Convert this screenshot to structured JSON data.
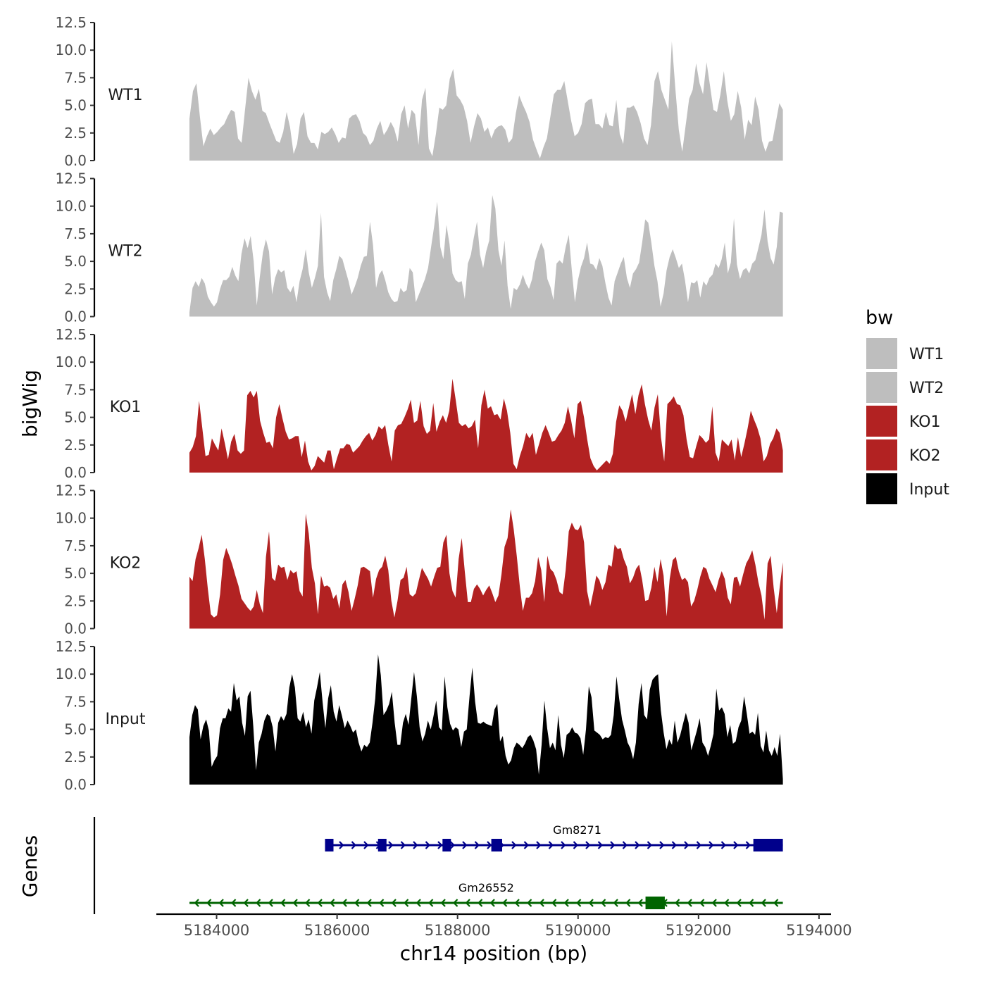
{
  "chart_data": {
    "type": "area",
    "description_axis": {
      "ylabel": "bigWig",
      "gene_panel_label": "Genes",
      "xlabel": "chr14 position (bp)",
      "x_ticks": [
        5184000,
        5186000,
        5188000,
        5190000,
        5192000,
        5194000
      ],
      "x_tick_labels": [
        "5184000",
        "5186000",
        "5188000",
        "5190000",
        "5192000",
        "5194000"
      ],
      "xlim": [
        5183000,
        5194200
      ],
      "data_x_range": [
        5183550,
        5193400
      ],
      "ylim": [
        0,
        12.5
      ],
      "y_ticks": [
        0,
        2.5,
        5,
        7.5,
        10,
        12.5
      ],
      "y_tick_labels": [
        "0.0",
        "2.5",
        "5.0",
        "7.5",
        "10.0",
        "12.5"
      ]
    },
    "series": [
      {
        "name": "WT1",
        "color": "#bebebe",
        "values": [
          3.8,
          6.3,
          7.0,
          4.0,
          1.3,
          2.2,
          2.9,
          2.3,
          2.6,
          3.0,
          3.3,
          4.0,
          4.6,
          4.4,
          2.0,
          1.6,
          4.6,
          7.5,
          6.3,
          5.5,
          6.5,
          4.5,
          4.3,
          3.4,
          2.6,
          1.8,
          1.6,
          2.6,
          4.4,
          3.0,
          0.6,
          1.5,
          3.8,
          4.4,
          2.2,
          1.6,
          1.6,
          1.0,
          2.6,
          2.4,
          2.6,
          3.0,
          2.4,
          1.6,
          2.1,
          2.0,
          3.8,
          4.1,
          4.2,
          3.6,
          2.5,
          2.2,
          1.4,
          1.8,
          2.9,
          3.6,
          2.3,
          2.8,
          3.5,
          2.9,
          1.7,
          4.2,
          5.0,
          2.9,
          4.6,
          4.2,
          1.4,
          5.5,
          6.6,
          1.1,
          0.4,
          2.4,
          4.8,
          4.6,
          5.0,
          7.4,
          8.3,
          5.9,
          5.5,
          4.9,
          3.6,
          1.6,
          3.1,
          4.3,
          3.8,
          2.6,
          3.0,
          2.0,
          2.8,
          3.1,
          3.2,
          2.8,
          1.6,
          2.0,
          4.2,
          5.9,
          5.1,
          4.4,
          3.5,
          1.9,
          1.0,
          0.2,
          1.2,
          2.0,
          4.0,
          6.0,
          6.4,
          6.4,
          7.2,
          5.4,
          3.6,
          2.2,
          2.5,
          3.3,
          5.2,
          5.5,
          5.6,
          3.3,
          3.3,
          2.9,
          4.4,
          3.2,
          3.1,
          5.5,
          2.4,
          1.5,
          4.8,
          4.8,
          5.0,
          4.4,
          3.4,
          2.0,
          1.4,
          3.2,
          7.2,
          8.1,
          6.4,
          5.5,
          4.6,
          10.8,
          6.6,
          2.8,
          0.8,
          3.2,
          5.6,
          6.4,
          8.8,
          7.0,
          6.0,
          8.9,
          6.8,
          4.6,
          4.4,
          6.0,
          8.1,
          5.4,
          3.6,
          4.2,
          6.3,
          4.8,
          1.9,
          3.7,
          3.2,
          5.8,
          4.6,
          1.8,
          0.8,
          1.7,
          1.8,
          3.5,
          5.2,
          4.6
        ]
      },
      {
        "name": "WT2",
        "color": "#bebebe",
        "values": [
          0.4,
          2.6,
          3.2,
          2.7,
          3.5,
          3.0,
          1.8,
          1.3,
          0.9,
          1.3,
          2.5,
          3.3,
          3.3,
          3.6,
          4.5,
          3.7,
          3.2,
          5.7,
          7.1,
          6.2,
          7.3,
          5.0,
          1.0,
          3.6,
          5.8,
          7.0,
          5.9,
          2.0,
          3.5,
          4.3,
          4.0,
          4.2,
          2.6,
          2.2,
          2.8,
          1.3,
          3.2,
          4.3,
          6.1,
          4.0,
          2.6,
          3.5,
          4.6,
          9.4,
          3.6,
          2.2,
          1.4,
          3.3,
          4.3,
          5.5,
          5.2,
          4.2,
          3.2,
          2.0,
          2.7,
          3.5,
          4.6,
          5.4,
          5.5,
          8.6,
          6.5,
          2.6,
          3.8,
          4.2,
          3.3,
          2.2,
          1.6,
          1.3,
          1.4,
          2.6,
          2.2,
          2.4,
          4.4,
          4.0,
          1.3,
          2.0,
          2.7,
          3.4,
          4.4,
          6.3,
          8.2,
          10.4,
          6.3,
          5.2,
          8.3,
          6.6,
          3.9,
          3.3,
          3.1,
          3.2,
          1.6,
          4.8,
          5.6,
          7.2,
          8.6,
          5.6,
          4.4,
          5.9,
          6.9,
          11.0,
          9.8,
          6.0,
          4.6,
          6.9,
          2.8,
          0.7,
          2.6,
          2.4,
          2.9,
          3.8,
          3.0,
          2.5,
          3.4,
          5.0,
          5.9,
          6.7,
          6.0,
          3.4,
          2.7,
          1.5,
          4.8,
          5.1,
          4.8,
          6.3,
          7.4,
          4.2,
          1.3,
          3.3,
          4.5,
          5.3,
          6.7,
          4.8,
          4.7,
          4.2,
          5.3,
          4.6,
          3.0,
          1.7,
          1.0,
          3.2,
          4.0,
          4.8,
          5.4,
          3.5,
          2.6,
          3.9,
          4.3,
          4.9,
          6.7,
          8.8,
          8.5,
          6.7,
          4.6,
          3.2,
          0.9,
          2.1,
          4.2,
          5.4,
          6.1,
          5.3,
          4.4,
          4.8,
          3.3,
          1.3,
          3.1,
          3.0,
          3.3,
          1.7,
          3.2,
          2.8,
          3.5,
          3.8,
          4.8,
          4.4,
          5.2,
          6.7,
          3.9,
          4.9,
          8.9,
          4.7,
          3.4,
          4.2,
          4.4,
          3.9,
          4.8,
          5.1,
          6.2,
          7.4,
          9.7,
          6.8,
          5.3,
          4.7,
          6.3,
          9.5,
          9.4
        ]
      },
      {
        "name": "KO1",
        "color": "#b22222",
        "values": [
          1.8,
          2.3,
          3.3,
          6.5,
          4.0,
          1.5,
          1.6,
          3.1,
          2.5,
          2.0,
          4.0,
          2.7,
          1.2,
          2.8,
          3.5,
          2.0,
          1.7,
          2.0,
          7.0,
          7.4,
          6.8,
          7.4,
          4.7,
          3.6,
          2.7,
          2.8,
          2.2,
          5.0,
          6.2,
          4.9,
          3.7,
          3.0,
          3.1,
          3.3,
          3.3,
          1.4,
          2.9,
          1.0,
          0.2,
          0.6,
          1.5,
          1.2,
          0.9,
          2.0,
          2.0,
          0.3,
          1.3,
          2.2,
          2.2,
          2.6,
          2.5,
          1.8,
          2.1,
          2.4,
          2.9,
          3.3,
          3.6,
          2.9,
          3.4,
          4.2,
          3.9,
          4.3,
          2.5,
          1.0,
          3.8,
          4.3,
          4.4,
          5.0,
          5.7,
          6.6,
          4.5,
          4.7,
          6.5,
          4.2,
          3.5,
          3.8,
          6.3,
          3.7,
          4.6,
          5.2,
          4.5,
          5.6,
          8.5,
          6.6,
          4.5,
          4.2,
          4.4,
          4.0,
          4.2,
          4.8,
          2.2,
          6.1,
          7.5,
          5.8,
          6.0,
          5.2,
          5.3,
          4.8,
          6.7,
          5.6,
          3.6,
          0.8,
          0.3,
          1.5,
          2.4,
          3.6,
          3.1,
          3.6,
          1.6,
          2.6,
          3.6,
          4.3,
          3.6,
          2.8,
          2.9,
          3.4,
          3.8,
          4.5,
          6.0,
          4.7,
          3.1,
          6.2,
          6.5,
          5.0,
          3.0,
          1.3,
          0.6,
          0.2,
          0.5,
          0.8,
          1.1,
          0.8,
          1.7,
          4.6,
          6.1,
          5.6,
          4.6,
          5.9,
          7.1,
          5.3,
          7.0,
          8.0,
          6.2,
          4.8,
          3.8,
          5.9,
          7.1,
          3.2,
          1.0,
          6.2,
          6.5,
          6.9,
          6.2,
          6.1,
          5.2,
          3.0,
          1.4,
          1.3,
          2.4,
          3.4,
          3.1,
          2.7,
          3.0,
          6.0,
          1.8,
          1.0,
          3.0,
          2.7,
          2.4,
          3.0,
          1.1,
          3.2,
          1.4,
          2.6,
          4.0,
          5.6,
          4.8,
          4.1,
          3.1,
          1.0,
          1.5,
          2.6,
          3.1,
          4.0,
          3.6,
          2.0
        ]
      },
      {
        "name": "KO2",
        "color": "#b22222",
        "values": [
          4.7,
          4.3,
          6.3,
          7.3,
          8.5,
          6.3,
          3.6,
          1.3,
          1.0,
          1.2,
          3.1,
          6.2,
          7.3,
          6.6,
          5.8,
          4.8,
          3.9,
          2.7,
          2.3,
          1.9,
          1.6,
          2.0,
          3.5,
          2.2,
          1.4,
          6.5,
          8.8,
          4.6,
          4.3,
          5.8,
          5.5,
          5.6,
          4.4,
          5.3,
          5.0,
          5.2,
          3.4,
          2.9,
          10.4,
          8.6,
          5.5,
          4.1,
          1.3,
          4.8,
          3.8,
          3.9,
          3.7,
          2.7,
          3.1,
          1.8,
          4.0,
          4.4,
          3.3,
          1.6,
          2.7,
          3.9,
          5.5,
          5.6,
          5.4,
          5.2,
          2.8,
          4.5,
          5.3,
          5.6,
          6.6,
          5.3,
          2.5,
          1.0,
          2.5,
          4.4,
          4.6,
          5.6,
          3.1,
          2.9,
          3.2,
          4.4,
          5.5,
          5.0,
          4.5,
          3.8,
          4.7,
          5.5,
          5.6,
          7.8,
          8.5,
          5.0,
          3.4,
          2.8,
          6.3,
          8.2,
          5.2,
          2.4,
          2.4,
          3.6,
          4.0,
          3.6,
          3.0,
          3.5,
          3.9,
          3.2,
          2.4,
          3.0,
          4.9,
          7.4,
          8.2,
          10.8,
          9.0,
          6.6,
          3.8,
          1.6,
          2.8,
          2.8,
          3.2,
          4.3,
          6.5,
          5.3,
          2.4,
          6.6,
          5.4,
          5.1,
          4.4,
          3.3,
          3.1,
          5.3,
          8.8,
          9.6,
          9.0,
          8.9,
          9.4,
          7.8,
          3.4,
          2.0,
          3.3,
          4.8,
          4.4,
          3.5,
          4.2,
          5.8,
          5.6,
          7.6,
          7.2,
          7.3,
          6.3,
          5.6,
          4.1,
          4.6,
          5.4,
          5.8,
          4.4,
          2.5,
          2.6,
          3.7,
          5.6,
          4.2,
          6.3,
          4.8,
          1.1,
          4.5,
          6.2,
          6.5,
          5.2,
          4.4,
          4.6,
          4.2,
          2.0,
          2.5,
          3.5,
          4.7,
          5.6,
          5.4,
          4.5,
          3.9,
          3.3,
          4.4,
          5.2,
          4.5,
          2.8,
          2.2,
          4.6,
          4.7,
          3.8,
          4.9,
          5.9,
          6.4,
          7.1,
          5.8,
          4.2,
          3.0,
          0.8,
          5.9,
          6.6,
          3.7,
          1.4,
          3.8,
          6.0
        ]
      },
      {
        "name": "Input",
        "color": "#000000",
        "values": [
          4.3,
          6.3,
          7.2,
          6.8,
          4.1,
          5.3,
          5.9,
          4.9,
          1.6,
          2.2,
          2.6,
          5.1,
          6.0,
          6.0,
          6.9,
          6.6,
          9.2,
          7.6,
          8.0,
          5.6,
          4.4,
          8.0,
          8.5,
          5.3,
          1.3,
          3.8,
          4.6,
          5.8,
          6.4,
          6.2,
          5.2,
          3.0,
          5.6,
          6.2,
          5.8,
          6.4,
          8.8,
          10.0,
          8.8,
          6.0,
          5.7,
          6.6,
          5.2,
          5.9,
          4.6,
          7.6,
          8.8,
          10.2,
          7.5,
          5.1,
          7.8,
          9.0,
          6.6,
          5.7,
          7.2,
          6.2,
          5.1,
          5.8,
          5.3,
          4.7,
          5.0,
          3.8,
          3.0,
          3.6,
          3.4,
          3.8,
          5.6,
          7.8,
          11.8,
          9.9,
          6.3,
          6.7,
          7.3,
          8.4,
          5.6,
          3.6,
          3.6,
          5.6,
          6.4,
          5.4,
          7.8,
          10.2,
          8.0,
          5.2,
          3.9,
          4.6,
          5.8,
          5.0,
          6.2,
          7.6,
          5.2,
          4.9,
          9.8,
          7.0,
          5.5,
          4.9,
          5.2,
          5.0,
          3.4,
          4.8,
          5.0,
          8.0,
          10.6,
          7.5,
          5.6,
          5.5,
          5.7,
          5.5,
          5.4,
          5.3,
          6.8,
          7.3,
          3.9,
          4.4,
          2.6,
          1.8,
          2.2,
          3.3,
          3.8,
          3.6,
          3.3,
          3.7,
          4.3,
          4.5,
          4.0,
          3.2,
          0.9,
          3.6,
          7.6,
          5.1,
          3.3,
          3.8,
          3.1,
          6.3,
          3.6,
          2.4,
          4.5,
          4.7,
          5.2,
          4.7,
          4.6,
          4.2,
          2.7,
          5.0,
          8.9,
          7.9,
          4.9,
          4.7,
          4.5,
          4.1,
          4.3,
          4.2,
          4.5,
          6.3,
          9.8,
          7.7,
          5.9,
          4.9,
          3.8,
          3.3,
          2.3,
          3.8,
          7.3,
          9.2,
          6.3,
          5.9,
          8.6,
          9.5,
          9.8,
          10.0,
          6.7,
          4.7,
          3.2,
          4.1,
          3.6,
          5.8,
          3.8,
          4.5,
          5.5,
          6.5,
          5.6,
          3.1,
          4.0,
          4.9,
          6.0,
          3.8,
          3.4,
          2.6,
          3.5,
          4.6,
          8.7,
          6.7,
          7.0,
          6.4,
          4.3,
          5.4,
          3.7,
          3.9,
          5.2,
          5.8,
          8.0,
          6.4,
          4.6,
          4.8,
          4.5,
          6.5,
          3.5,
          2.9,
          4.9,
          3.1,
          2.6,
          3.4,
          2.6,
          4.6,
          0.5
        ]
      }
    ],
    "legend": {
      "title": "bw",
      "placement": "right",
      "entries": [
        {
          "label": "WT1",
          "color": "#bebebe"
        },
        {
          "label": "WT2",
          "color": "#bebebe"
        },
        {
          "label": "KO1",
          "color": "#b22222"
        },
        {
          "label": "KO2",
          "color": "#b22222"
        },
        {
          "label": "Input",
          "color": "#000000"
        }
      ]
    },
    "genes": [
      {
        "name": "Gm8271",
        "strand": "+",
        "color": "#00008b",
        "start": 5185800,
        "end": 5193400,
        "exons": [
          [
            5185800,
            5185920
          ],
          [
            5186680,
            5186820
          ],
          [
            5187750,
            5187860
          ],
          [
            5188560,
            5188740
          ],
          [
            5192910,
            5193400
          ]
        ]
      },
      {
        "name": "Gm26552",
        "strand": "-",
        "color": "#006400",
        "start": 5183550,
        "end": 5193400,
        "exons": [
          [
            5191120,
            5191440
          ]
        ]
      }
    ]
  }
}
